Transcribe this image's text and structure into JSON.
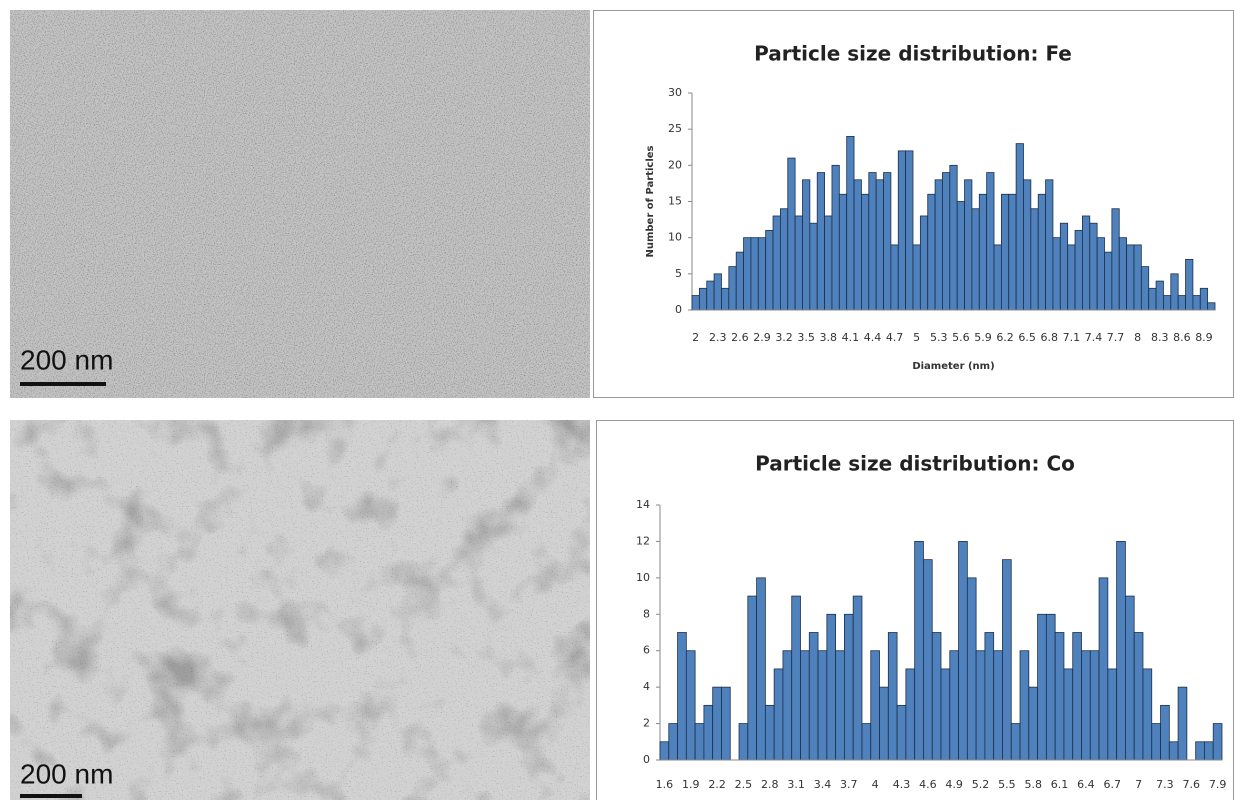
{
  "images": [
    {
      "scale_label": "200 nm"
    },
    {
      "scale_label": "200 nm"
    }
  ],
  "chart_data": [
    {
      "type": "bar",
      "title": "Particle size distribution: Fe",
      "x_label": "Diameter (nm)",
      "y_label": "Number of Particles",
      "color": "#4f81bd",
      "categories": [
        2,
        null,
        null,
        2.3,
        null,
        null,
        2.6,
        null,
        null,
        2.9,
        null,
        null,
        3.2,
        null,
        null,
        3.5,
        null,
        null,
        3.8,
        null,
        null,
        4.1,
        null,
        null,
        4.4,
        null,
        null,
        4.7,
        null,
        null,
        5,
        null,
        null,
        5.3,
        null,
        null,
        5.6,
        null,
        null,
        5.9,
        null,
        null,
        6.2,
        null,
        null,
        6.5,
        null,
        null,
        6.8,
        null,
        null,
        7.1,
        null,
        null,
        7.4,
        null,
        null,
        7.7,
        null,
        null,
        8,
        null,
        null,
        8.3,
        null,
        null,
        8.6,
        null,
        null,
        8.9,
        null
      ],
      "values": [
        2,
        3,
        4,
        5,
        3,
        6,
        8,
        10,
        10,
        10,
        11,
        13,
        14,
        21,
        13,
        18,
        12,
        19,
        13,
        20,
        16,
        24,
        18,
        16,
        19,
        18,
        19,
        9,
        22,
        22,
        9,
        13,
        16,
        18,
        19,
        20,
        15,
        18,
        14,
        16,
        19,
        9,
        16,
        16,
        23,
        18,
        14,
        16,
        18,
        10,
        12,
        9,
        11,
        13,
        12,
        10,
        8,
        14,
        10,
        9,
        9,
        6,
        3,
        4,
        2,
        5,
        2,
        7,
        2,
        3,
        1
      ],
      "ylim": [
        0,
        30
      ],
      "yticks": [
        0,
        5,
        10,
        15,
        20,
        25,
        30
      ]
    },
    {
      "type": "bar",
      "title": "Particle size distribution: Co",
      "color": "#4f81bd",
      "categories": [
        1.6,
        null,
        null,
        1.9,
        null,
        null,
        2.2,
        null,
        null,
        2.5,
        null,
        null,
        2.8,
        null,
        null,
        3.1,
        null,
        null,
        3.4,
        null,
        null,
        3.7,
        null,
        null,
        4,
        null,
        null,
        4.3,
        null,
        null,
        4.6,
        null,
        null,
        4.9,
        null,
        null,
        5.2,
        null,
        null,
        5.5,
        null,
        null,
        5.8,
        null,
        null,
        6.1,
        null,
        null,
        6.4,
        null,
        null,
        6.7,
        null,
        null,
        7,
        null,
        null,
        7.3,
        null,
        null,
        7.6,
        null,
        null,
        7.9
      ],
      "values": [
        1,
        2,
        7,
        6,
        2,
        3,
        4,
        4,
        0,
        2,
        9,
        10,
        3,
        5,
        6,
        9,
        6,
        7,
        6,
        8,
        6,
        8,
        9,
        2,
        6,
        4,
        7,
        3,
        5,
        12,
        11,
        7,
        5,
        6,
        12,
        10,
        6,
        7,
        6,
        11,
        2,
        6,
        4,
        8,
        8,
        7,
        5,
        7,
        6,
        6,
        10,
        5,
        12,
        9,
        7,
        5,
        2,
        3,
        1,
        4,
        0,
        1,
        1,
        2
      ],
      "ylim": [
        0,
        14
      ],
      "yticks": [
        0,
        2,
        4,
        6,
        8,
        10,
        12,
        14
      ]
    }
  ]
}
